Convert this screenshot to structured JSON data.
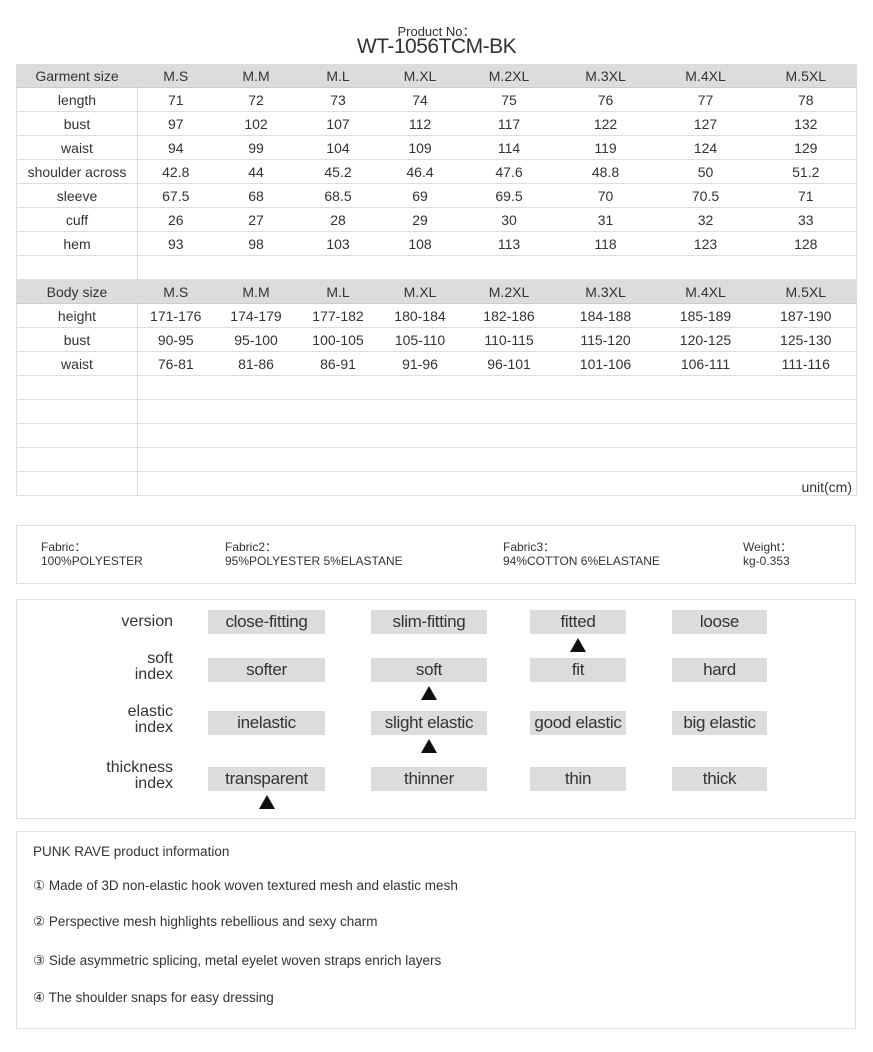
{
  "product": {
    "label": "Product No：",
    "number": "WT-1056TCM-BK"
  },
  "garment": {
    "header": "Garment size",
    "sizes": [
      "M.S",
      "M.M",
      "M.L",
      "M.XL",
      "M.2XL",
      "M.3XL",
      "M.4XL",
      "M.5XL"
    ],
    "rows": [
      {
        "name": "length",
        "values": [
          "71",
          "72",
          "73",
          "74",
          "75",
          "76",
          "77",
          "78"
        ]
      },
      {
        "name": "bust",
        "values": [
          "97",
          "102",
          "107",
          "112",
          "117",
          "122",
          "127",
          "132"
        ]
      },
      {
        "name": "waist",
        "values": [
          "94",
          "99",
          "104",
          "109",
          "114",
          "119",
          "124",
          "129"
        ]
      },
      {
        "name": "shoulder across",
        "values": [
          "42.8",
          "44",
          "45.2",
          "46.4",
          "47.6",
          "48.8",
          "50",
          "51.2"
        ]
      },
      {
        "name": "sleeve",
        "values": [
          "67.5",
          "68",
          "68.5",
          "69",
          "69.5",
          "70",
          "70.5",
          "71"
        ]
      },
      {
        "name": "cuff",
        "values": [
          "26",
          "27",
          "28",
          "29",
          "30",
          "31",
          "32",
          "33"
        ]
      },
      {
        "name": "hem",
        "values": [
          "93",
          "98",
          "103",
          "108",
          "113",
          "118",
          "123",
          "128"
        ]
      }
    ]
  },
  "body": {
    "header": "Body size",
    "sizes": [
      "M.S",
      "M.M",
      "M.L",
      "M.XL",
      "M.2XL",
      "M.3XL",
      "M.4XL",
      "M.5XL"
    ],
    "rows": [
      {
        "name": "height",
        "values": [
          "171-176",
          "174-179",
          "177-182",
          "180-184",
          "182-186",
          "184-188",
          "185-189",
          "187-190"
        ]
      },
      {
        "name": "bust",
        "values": [
          "90-95",
          "95-100",
          "100-105",
          "105-110",
          "110-115",
          "115-120",
          "120-125",
          "125-130"
        ]
      },
      {
        "name": "waist",
        "values": [
          "76-81",
          "81-86",
          "86-91",
          "91-96",
          "96-101",
          "101-106",
          "106-111",
          "111-116"
        ]
      }
    ]
  },
  "unit": "unit(cm)",
  "fabric": [
    {
      "label": "Fabric：",
      "value": "100%POLYESTER"
    },
    {
      "label": "Fabric2：",
      "value": "95%POLYESTER 5%ELASTANE"
    },
    {
      "label": "Fabric3：",
      "value": "94%COTTON 6%ELASTANE"
    },
    {
      "label": "Weight：",
      "value": "kg-0.353"
    }
  ],
  "properties": [
    {
      "label": [
        "version"
      ],
      "options": [
        "close-fitting",
        "slim-fitting",
        "fitted",
        "loose"
      ],
      "selected": 2
    },
    {
      "label": [
        "soft",
        "index"
      ],
      "options": [
        "softer",
        "soft",
        "fit",
        "hard"
      ],
      "selected": 1
    },
    {
      "label": [
        "elastic",
        "index"
      ],
      "options": [
        "inelastic",
        "slight elastic",
        "good elastic",
        "big elastic"
      ],
      "selected": 1
    },
    {
      "label": [
        "thickness",
        "index"
      ],
      "options": [
        "transparent",
        "thinner",
        "thin",
        "thick"
      ],
      "selected": 0
    }
  ],
  "info": {
    "title": "PUNK RAVE product information",
    "items": [
      "① Made of 3D non-elastic hook woven textured mesh and elastic mesh",
      "② Perspective mesh highlights rebellious and sexy charm",
      "③ Side asymmetric splicing, metal eyelet woven straps enrich layers",
      "④ The shoulder snaps for easy dressing"
    ]
  },
  "colors": {
    "header_bg": "#dcdcdc",
    "border": "#dddddd",
    "marker": "#111111"
  }
}
